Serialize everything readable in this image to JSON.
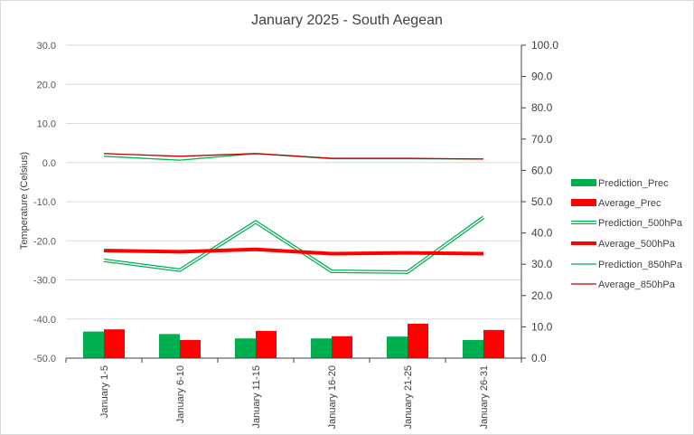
{
  "chart_data": {
    "type": "bar",
    "title": "January 2025 - South Aegean",
    "ylabel_left": "Temperature (Celsius)",
    "ylim_left": [
      -50,
      30
    ],
    "yticks_left": [
      "30.0",
      "20.0",
      "10.0",
      "0.0",
      "-10.0",
      "-20.0",
      "-30.0",
      "-40.0",
      "-50.0"
    ],
    "ylim_right": [
      0,
      100
    ],
    "yticks_right": [
      "100.0",
      "90.0",
      "80.0",
      "70.0",
      "60.0",
      "50.0",
      "40.0",
      "30.0",
      "20.0",
      "10.0",
      "0.0"
    ],
    "grid": true,
    "legend_position": "right",
    "categories": [
      "January 1-5",
      "January 6-10",
      "January 11-15",
      "January 16-20",
      "January 21-25",
      "January 26-31"
    ],
    "series": [
      {
        "name": "Prediction_Prec",
        "kind": "bar",
        "axis": "right",
        "color": "#00b050",
        "values": [
          8.5,
          7.7,
          6.3,
          6.3,
          6.9,
          5.8
        ]
      },
      {
        "name": "Average_Prec",
        "kind": "bar",
        "axis": "right",
        "color": "#ff0000",
        "values": [
          9.2,
          5.8,
          8.7,
          7.0,
          11.0,
          9.0
        ]
      },
      {
        "name": "Prediction_500hPa",
        "kind": "line",
        "style": "double",
        "axis": "left",
        "color": "#00b050",
        "values": [
          -25.0,
          -27.5,
          -15.2,
          -27.8,
          -28.0,
          -14.0
        ]
      },
      {
        "name": "Average_500hPa",
        "kind": "line",
        "style": "thick",
        "axis": "left",
        "color": "#ff0000",
        "values": [
          -22.5,
          -22.8,
          -22.2,
          -23.3,
          -23.1,
          -23.3
        ]
      },
      {
        "name": "Prediction_850hPa",
        "kind": "line",
        "style": "thin",
        "axis": "left",
        "color": "#00b050",
        "values": [
          1.6,
          0.6,
          2.3,
          1.0,
          1.0,
          0.9
        ]
      },
      {
        "name": "Average_850hPa",
        "kind": "line",
        "style": "thin",
        "axis": "left",
        "color": "#c00000",
        "values": [
          2.3,
          1.6,
          2.3,
          1.1,
          1.1,
          0.9
        ]
      }
    ]
  }
}
